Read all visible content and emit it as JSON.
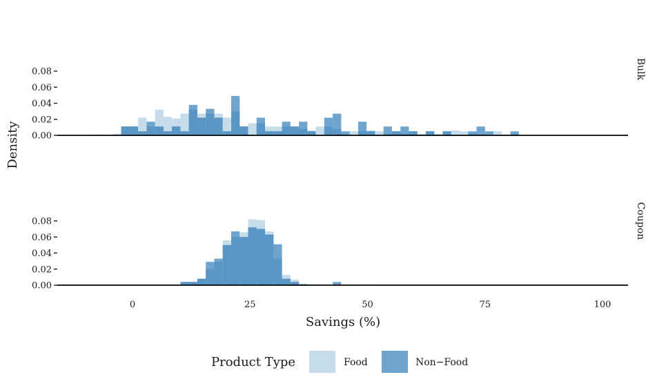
{
  "chart_data": {
    "type": "bar",
    "subtype": "faceted-overlaid-histogram",
    "xlabel": "Savings (%)",
    "ylabel": "Density",
    "xlim": [
      -10,
      105
    ],
    "ylim": [
      0,
      0.08
    ],
    "x_ticks": [
      0,
      25,
      50,
      75,
      100
    ],
    "y_ticks": [
      0,
      0.02,
      0.04,
      0.06,
      0.08
    ],
    "y_tick_labels": [
      "0.00",
      "0.02",
      "0.04",
      "0.06",
      "0.08"
    ],
    "bin_width": 1.8,
    "bin_start": -9.6,
    "grid": false,
    "legend": {
      "title": "Product Type",
      "position": "bottom",
      "items": [
        {
          "name": "Food",
          "color": "#c6dcea"
        },
        {
          "name": "Non−Food",
          "color": "#6ea4cd"
        }
      ]
    },
    "colors": {
      "food": "#c6dcea",
      "non_food": "#6ea4cd",
      "overlap": "#5a96c5"
    },
    "panels": [
      {
        "strip": "Bulk",
        "series": [
          {
            "name": "Food",
            "values": [
              0,
              0.001,
              0,
              0.002,
              0.011,
              0.011,
              0.022,
              0.011,
              0.032,
              0.023,
              0.021,
              0.027,
              0.032,
              0.027,
              0.027,
              0.027,
              0.022,
              0.03,
              0.011,
              0.015,
              0.015,
              0.011,
              0.011,
              0.011,
              0.011,
              0.008,
              0.006,
              0.011,
              0.011,
              0.008,
              0.001,
              0.005,
              0.005,
              0.006,
              0.005,
              0.002,
              0.005,
              0.002,
              0.005,
              0.002,
              0.005,
              0.002,
              0.005,
              0.006,
              0.005,
              0.002,
              0.001,
              0.0,
              0.005,
              0.001,
              0.001
            ]
          },
          {
            "name": "Non−Food",
            "values": [
              0,
              0,
              0,
              0,
              0.011,
              0.011,
              0.005,
              0.017,
              0.011,
              0.005,
              0.011,
              0.005,
              0.038,
              0.022,
              0.033,
              0.022,
              0.005,
              0.049,
              0.011,
              0.0,
              0.022,
              0.005,
              0.005,
              0.017,
              0.011,
              0.017,
              0.005,
              0,
              0.022,
              0.027,
              0.005,
              0,
              0.017,
              0.005,
              0,
              0.011,
              0.005,
              0.011,
              0.005,
              0,
              0.005,
              0,
              0.005,
              0,
              0,
              0.005,
              0.011,
              0.005,
              0,
              0,
              0.005
            ]
          }
        ]
      },
      {
        "strip": "Coupon",
        "series": [
          {
            "name": "Food",
            "values": [
              0,
              0,
              0,
              0,
              0,
              0,
              0,
              0,
              0,
              0,
              0,
              0.004,
              0.004,
              0.008,
              0.02,
              0.029,
              0.056,
              0.06,
              0.066,
              0.082,
              0.081,
              0.067,
              0.033,
              0.013,
              0.007,
              0.002,
              0.001,
              0.001,
              0,
              0,
              0,
              0,
              0,
              0.001,
              0,
              0,
              0,
              0,
              0,
              0,
              0,
              0,
              0,
              0,
              0,
              0,
              0,
              0,
              0,
              0,
              0
            ]
          },
          {
            "name": "Non−Food",
            "values": [
              0,
              0,
              0,
              0,
              0,
              0,
              0,
              0,
              0,
              0,
              0,
              0.004,
              0.004,
              0.008,
              0.029,
              0.033,
              0.05,
              0.067,
              0.06,
              0.072,
              0.07,
              0.063,
              0.051,
              0.008,
              0.004,
              0.001,
              0,
              0,
              0,
              0.004,
              0,
              0,
              0,
              0,
              0,
              0,
              0,
              0,
              0,
              0,
              0,
              0,
              0,
              0,
              0,
              0,
              0,
              0,
              0,
              0,
              0
            ]
          }
        ]
      }
    ]
  }
}
